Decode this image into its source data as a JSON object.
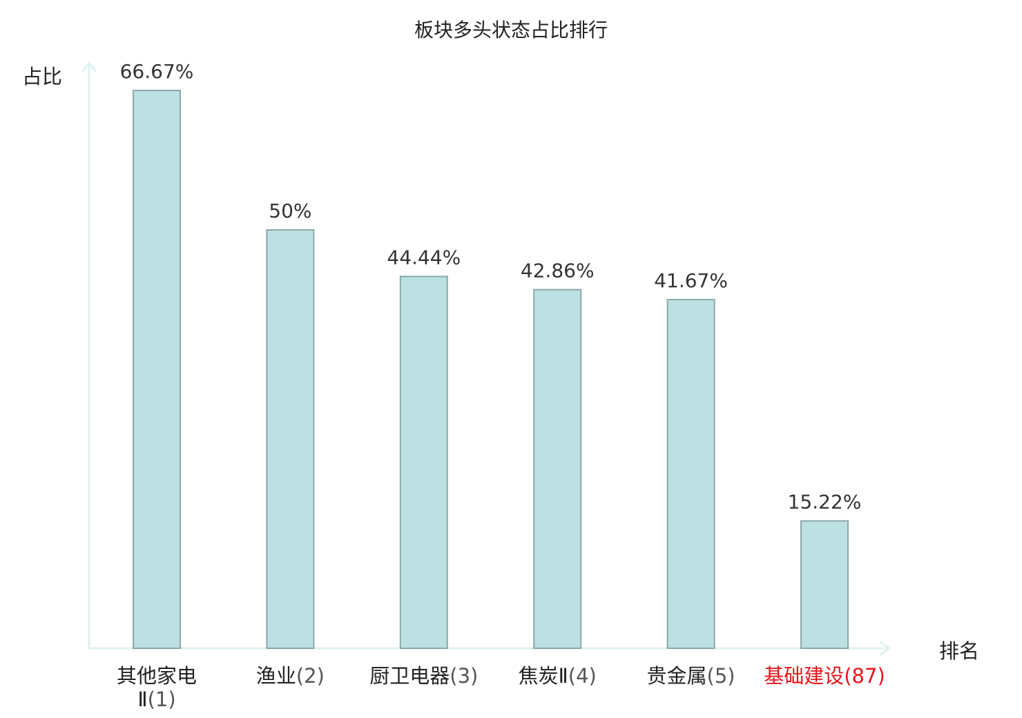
{
  "chart_data": {
    "type": "bar",
    "title": "板块多头状态占比排行",
    "ylabel": "占比",
    "xlabel": "排名",
    "categories": [
      {
        "name": "其他家电Ⅱ",
        "rank": "(1)",
        "highlight": false
      },
      {
        "name": "渔业",
        "rank": "(2)",
        "highlight": false
      },
      {
        "name": "厨卫电器",
        "rank": "(3)",
        "highlight": false
      },
      {
        "name": "焦炭Ⅱ",
        "rank": "(4)",
        "highlight": false
      },
      {
        "name": "贵金属",
        "rank": "(5)",
        "highlight": false
      },
      {
        "name": "基础建设",
        "rank": "(87)",
        "highlight": true
      }
    ],
    "values": [
      66.67,
      50,
      44.44,
      42.86,
      41.67,
      15.22
    ],
    "labels": [
      "66.67%",
      "50%",
      "44.44%",
      "42.86%",
      "41.67%",
      "15.22%"
    ],
    "ylim": [
      0,
      66.67
    ],
    "grid": false,
    "legend": "none"
  },
  "colors": {
    "bar_fill": "#bde0e2",
    "bar_stroke": "#8aa8aa",
    "axis": "#dff2ef",
    "highlight_text": "#e8141b",
    "text": "#333333"
  }
}
